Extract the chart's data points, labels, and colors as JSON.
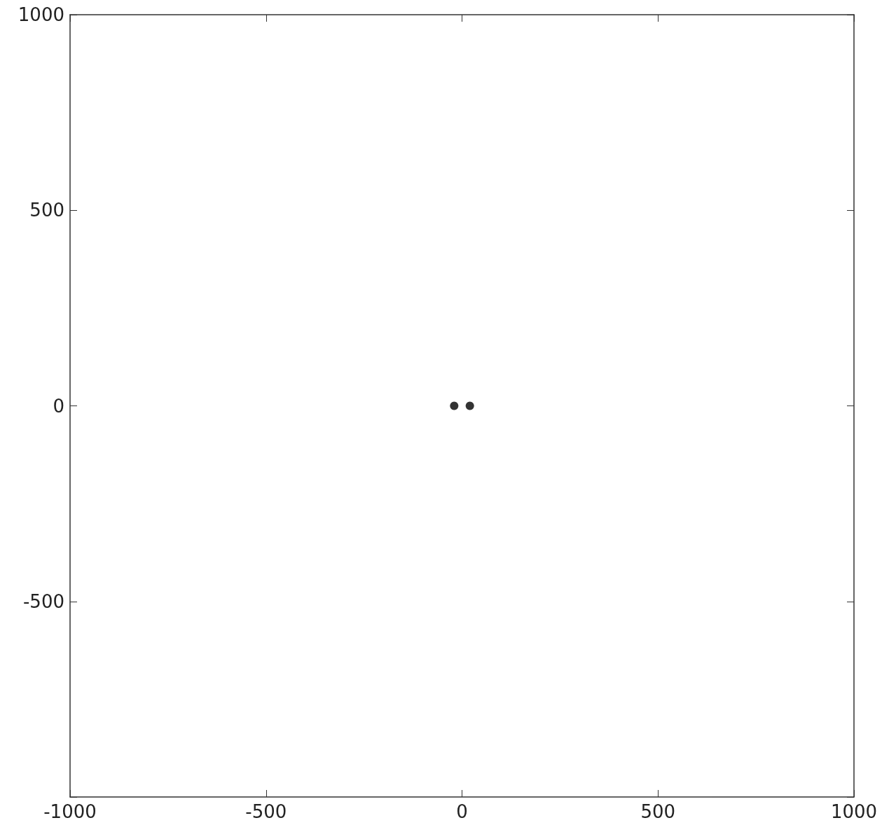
{
  "chart_data": {
    "type": "scatter",
    "x": [
      -20,
      20
    ],
    "values": [
      0,
      0
    ],
    "color": "#000000",
    "marker": "circle",
    "xlim": [
      -1000,
      1000
    ],
    "ylim": [
      -1000,
      1000
    ],
    "xticks": [
      -1000,
      -500,
      0,
      500,
      1000
    ],
    "yticks": [
      {
        "value": -1000,
        "label": null
      },
      -500,
      0,
      500,
      1000
    ],
    "grid": false
  }
}
